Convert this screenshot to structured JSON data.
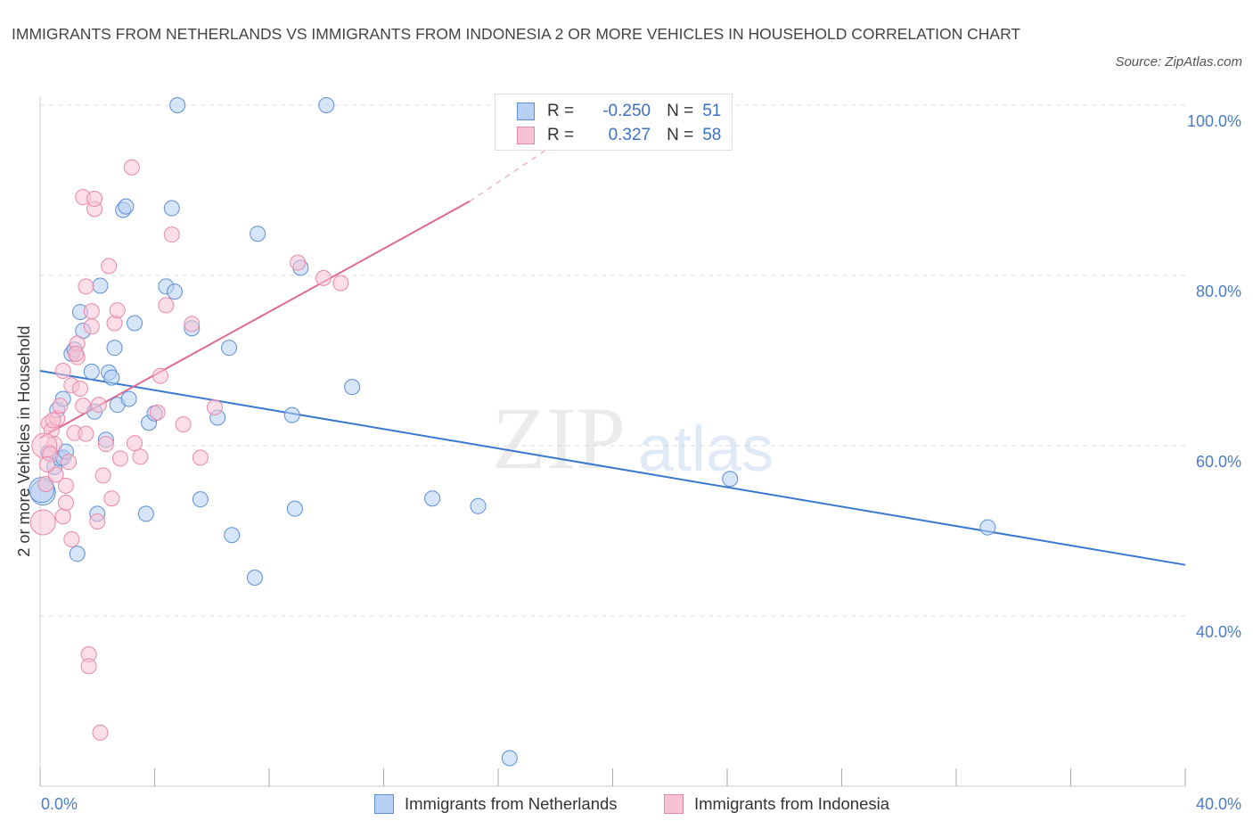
{
  "title": "IMMIGRANTS FROM NETHERLANDS VS IMMIGRANTS FROM INDONESIA 2 OR MORE VEHICLES IN HOUSEHOLD CORRELATION CHART",
  "source": "Source: ZipAtlas.com",
  "watermark": {
    "zip": "ZIP",
    "atlas": "atlas"
  },
  "colors": {
    "netherlands_fill": "#b7d0f3",
    "netherlands_stroke": "#5b8fd6",
    "netherlands_line": "#3a78d0",
    "indonesia_fill": "#f7c3d3",
    "indonesia_stroke": "#e889a8",
    "indonesia_line": "#e0698f",
    "tick_text": "#4a7cc7",
    "grid": "#dddddd"
  },
  "legend": {
    "netherlands": {
      "r_label": "R =",
      "r_value": "-0.250",
      "n_label": "N =",
      "n_value": "51"
    },
    "indonesia": {
      "r_label": "R =",
      "r_value": "0.327",
      "n_label": "N =",
      "n_value": "58"
    }
  },
  "bottom_legend": {
    "netherlands": "Immigrants from Netherlands",
    "indonesia": "Immigrants from Indonesia"
  },
  "chart_data": {
    "type": "scatter",
    "title": "IMMIGRANTS FROM NETHERLANDS VS IMMIGRANTS FROM INDONESIA 2 OR MORE VEHICLES IN HOUSEHOLD CORRELATION CHART",
    "xlabel": "",
    "ylabel": "2 or more Vehicles in Household",
    "xlim": [
      0,
      40
    ],
    "ylim": [
      20,
      100
    ],
    "x_tick_labels": [
      "0.0%",
      "40.0%"
    ],
    "y_ticks": [
      40,
      60,
      80,
      100
    ],
    "y_tick_labels": [
      "40.0%",
      "60.0%",
      "80.0%",
      "100.0%"
    ],
    "grid": true,
    "legend_position": "top-center",
    "series": [
      {
        "name": "Immigrants from Netherlands",
        "points": [
          [
            0.1,
            54.5
          ],
          [
            0.3,
            59.2
          ],
          [
            0.5,
            57.5
          ],
          [
            0.6,
            64.2
          ],
          [
            0.7,
            58.5
          ],
          [
            0.8,
            65.5
          ],
          [
            0.8,
            58.6
          ],
          [
            0.9,
            59.3
          ],
          [
            1.1,
            70.8
          ],
          [
            1.2,
            71.3
          ],
          [
            1.3,
            47.3
          ],
          [
            1.4,
            75.7
          ],
          [
            1.5,
            73.5
          ],
          [
            1.8,
            68.7
          ],
          [
            1.9,
            64.0
          ],
          [
            2.0,
            52.0
          ],
          [
            2.1,
            78.8
          ],
          [
            2.3,
            60.7
          ],
          [
            2.4,
            68.6
          ],
          [
            2.5,
            68.0
          ],
          [
            2.6,
            71.5
          ],
          [
            2.7,
            64.8
          ],
          [
            2.9,
            87.7
          ],
          [
            3.0,
            88.1
          ],
          [
            3.1,
            65.5
          ],
          [
            3.3,
            74.4
          ],
          [
            3.7,
            52.0
          ],
          [
            3.8,
            62.7
          ],
          [
            4.0,
            63.8
          ],
          [
            4.4,
            78.7
          ],
          [
            4.6,
            87.9
          ],
          [
            4.7,
            78.1
          ],
          [
            4.8,
            100.0
          ],
          [
            5.3,
            73.8
          ],
          [
            5.6,
            53.7
          ],
          [
            6.2,
            63.3
          ],
          [
            6.6,
            71.5
          ],
          [
            6.7,
            49.5
          ],
          [
            7.5,
            44.5
          ],
          [
            7.6,
            84.9
          ],
          [
            8.8,
            63.6
          ],
          [
            8.9,
            52.6
          ],
          [
            9.1,
            80.9
          ],
          [
            10.0,
            100.0
          ],
          [
            10.9,
            66.9
          ],
          [
            13.7,
            53.8
          ],
          [
            15.3,
            52.9
          ],
          [
            16.4,
            23.3
          ],
          [
            24.1,
            56.1
          ],
          [
            33.1,
            50.4
          ],
          [
            0.05,
            54.8
          ]
        ]
      },
      {
        "name": "Immigrants from Indonesia",
        "points": [
          [
            0.1,
            51.0
          ],
          [
            0.2,
            55.5
          ],
          [
            0.3,
            62.6
          ],
          [
            0.4,
            61.8
          ],
          [
            0.5,
            60.2
          ],
          [
            0.6,
            63.2
          ],
          [
            0.7,
            64.7
          ],
          [
            0.8,
            68.8
          ],
          [
            0.8,
            51.7
          ],
          [
            0.9,
            53.3
          ],
          [
            0.9,
            55.3
          ],
          [
            1.0,
            58.1
          ],
          [
            1.1,
            67.1
          ],
          [
            1.1,
            49.0
          ],
          [
            1.2,
            61.5
          ],
          [
            1.3,
            70.4
          ],
          [
            1.3,
            72.0
          ],
          [
            1.4,
            66.7
          ],
          [
            1.5,
            89.2
          ],
          [
            1.5,
            64.7
          ],
          [
            1.6,
            78.7
          ],
          [
            1.6,
            61.4
          ],
          [
            1.7,
            35.5
          ],
          [
            1.7,
            34.1
          ],
          [
            1.8,
            75.8
          ],
          [
            1.8,
            74.0
          ],
          [
            1.9,
            87.8
          ],
          [
            1.9,
            89.0
          ],
          [
            2.0,
            51.1
          ],
          [
            2.1,
            26.3
          ],
          [
            2.2,
            56.5
          ],
          [
            2.3,
            60.2
          ],
          [
            2.4,
            81.1
          ],
          [
            2.5,
            53.8
          ],
          [
            2.6,
            74.4
          ],
          [
            2.7,
            75.9
          ],
          [
            2.8,
            58.5
          ],
          [
            3.2,
            92.7
          ],
          [
            3.3,
            60.3
          ],
          [
            3.5,
            58.7
          ],
          [
            4.1,
            63.9
          ],
          [
            4.2,
            68.2
          ],
          [
            4.4,
            76.5
          ],
          [
            4.6,
            84.8
          ],
          [
            5.0,
            62.5
          ],
          [
            5.3,
            74.3
          ],
          [
            5.6,
            58.6
          ],
          [
            6.1,
            64.5
          ],
          [
            9.0,
            81.5
          ],
          [
            9.9,
            79.7
          ],
          [
            10.5,
            79.1
          ],
          [
            0.15,
            60.0
          ],
          [
            0.35,
            59.0
          ],
          [
            0.55,
            56.6
          ],
          [
            0.45,
            63.0
          ],
          [
            1.25,
            70.8
          ],
          [
            2.05,
            64.8
          ],
          [
            0.25,
            57.8
          ]
        ]
      }
    ],
    "trendlines": [
      {
        "series": "Immigrants from Netherlands",
        "from": [
          0,
          68.8
        ],
        "to": [
          40,
          46.0
        ]
      },
      {
        "series": "Immigrants from Indonesia",
        "from": [
          0,
          60.9
        ],
        "to": [
          15,
          88.7
        ],
        "dashed_to": [
          20,
          100
        ]
      }
    ]
  }
}
